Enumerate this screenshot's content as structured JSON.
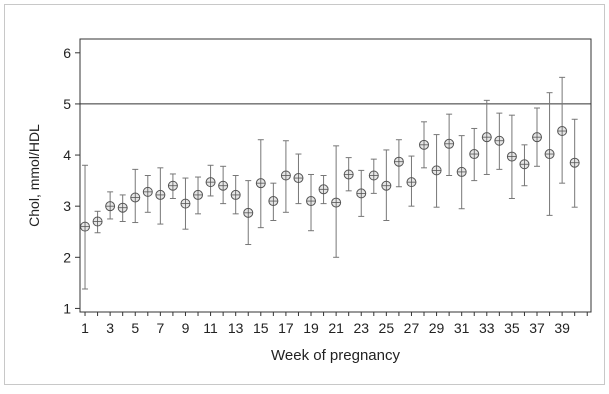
{
  "chart_data": {
    "type": "scatter",
    "subtype": "mean-with-error-bars",
    "xlabel": "Week of pregnancy",
    "ylabel": "Chol, mmol/HDL",
    "xlim": [
      1,
      41
    ],
    "ylim": [
      1,
      6
    ],
    "x_ticks": [
      1,
      3,
      5,
      7,
      9,
      11,
      13,
      15,
      17,
      19,
      21,
      23,
      25,
      27,
      29,
      31,
      33,
      35,
      37,
      39
    ],
    "y_ticks": [
      1,
      2,
      3,
      4,
      5,
      6
    ],
    "reference_line": 5,
    "grid": false,
    "colors": {
      "marker_stroke": "#555555",
      "marker_fill": "#e6e6e6",
      "bar": "#777777",
      "axis": "#333333",
      "frame": "#c8c8c8"
    },
    "points": [
      {
        "x": 1,
        "mean": 2.6,
        "low": 1.38,
        "high": 3.8
      },
      {
        "x": 2,
        "mean": 2.7,
        "low": 2.48,
        "high": 2.9
      },
      {
        "x": 3,
        "mean": 3.0,
        "low": 2.75,
        "high": 3.28
      },
      {
        "x": 4,
        "mean": 2.97,
        "low": 2.7,
        "high": 3.22
      },
      {
        "x": 5,
        "mean": 3.17,
        "low": 2.68,
        "high": 3.72
      },
      {
        "x": 6,
        "mean": 3.28,
        "low": 2.88,
        "high": 3.6
      },
      {
        "x": 7,
        "mean": 3.22,
        "low": 2.65,
        "high": 3.75
      },
      {
        "x": 8,
        "mean": 3.4,
        "low": 3.15,
        "high": 3.63
      },
      {
        "x": 9,
        "mean": 3.05,
        "low": 2.55,
        "high": 3.55
      },
      {
        "x": 10,
        "mean": 3.22,
        "low": 2.85,
        "high": 3.57
      },
      {
        "x": 11,
        "mean": 3.47,
        "low": 3.2,
        "high": 3.8
      },
      {
        "x": 12,
        "mean": 3.4,
        "low": 3.05,
        "high": 3.78
      },
      {
        "x": 13,
        "mean": 3.22,
        "low": 2.85,
        "high": 3.6
      },
      {
        "x": 14,
        "mean": 2.87,
        "low": 2.25,
        "high": 3.5
      },
      {
        "x": 15,
        "mean": 3.45,
        "low": 2.58,
        "high": 4.3
      },
      {
        "x": 16,
        "mean": 3.1,
        "low": 2.72,
        "high": 3.45
      },
      {
        "x": 17,
        "mean": 3.6,
        "low": 2.88,
        "high": 4.28
      },
      {
        "x": 18,
        "mean": 3.55,
        "low": 3.05,
        "high": 4.02
      },
      {
        "x": 19,
        "mean": 3.1,
        "low": 2.52,
        "high": 3.62
      },
      {
        "x": 20,
        "mean": 3.33,
        "low": 3.05,
        "high": 3.6
      },
      {
        "x": 21,
        "mean": 3.07,
        "low": 2.0,
        "high": 4.18
      },
      {
        "x": 22,
        "mean": 3.62,
        "low": 3.3,
        "high": 3.95
      },
      {
        "x": 23,
        "mean": 3.25,
        "low": 2.8,
        "high": 3.7
      },
      {
        "x": 24,
        "mean": 3.6,
        "low": 3.25,
        "high": 3.92
      },
      {
        "x": 25,
        "mean": 3.4,
        "low": 2.72,
        "high": 4.1
      },
      {
        "x": 26,
        "mean": 3.87,
        "low": 3.38,
        "high": 4.3
      },
      {
        "x": 27,
        "mean": 3.47,
        "low": 3.0,
        "high": 3.98
      },
      {
        "x": 28,
        "mean": 4.2,
        "low": 3.75,
        "high": 4.65
      },
      {
        "x": 29,
        "mean": 3.7,
        "low": 2.98,
        "high": 4.4
      },
      {
        "x": 30,
        "mean": 4.22,
        "low": 3.6,
        "high": 4.8
      },
      {
        "x": 31,
        "mean": 3.67,
        "low": 2.95,
        "high": 4.38
      },
      {
        "x": 32,
        "mean": 4.02,
        "low": 3.5,
        "high": 4.52
      },
      {
        "x": 33,
        "mean": 4.35,
        "low": 3.62,
        "high": 5.07
      },
      {
        "x": 34,
        "mean": 4.28,
        "low": 3.72,
        "high": 4.82
      },
      {
        "x": 35,
        "mean": 3.97,
        "low": 3.15,
        "high": 4.78
      },
      {
        "x": 36,
        "mean": 3.82,
        "low": 3.4,
        "high": 4.2
      },
      {
        "x": 37,
        "mean": 4.35,
        "low": 3.78,
        "high": 4.92
      },
      {
        "x": 38,
        "mean": 4.02,
        "low": 2.82,
        "high": 5.22
      },
      {
        "x": 39,
        "mean": 4.47,
        "low": 3.45,
        "high": 5.52
      },
      {
        "x": 40,
        "mean": 3.85,
        "low": 2.98,
        "high": 4.7
      }
    ]
  }
}
